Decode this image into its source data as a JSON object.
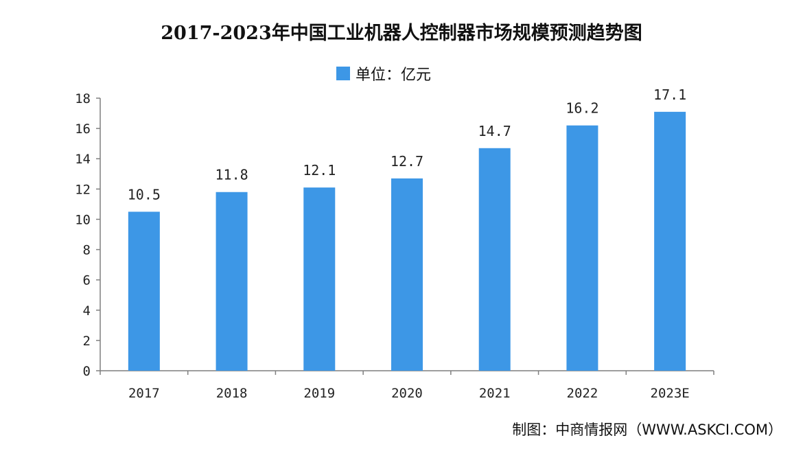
{
  "chart_data": {
    "type": "bar",
    "title": "2017-2023年中国工业机器人控制器市场规模预测趋势图",
    "legend": [
      "单位：亿元"
    ],
    "categories": [
      "2017",
      "2018",
      "2019",
      "2020",
      "2021",
      "2022",
      "2023E"
    ],
    "values": [
      10.5,
      11.8,
      12.1,
      12.7,
      14.7,
      16.2,
      17.1
    ],
    "data_labels": [
      "10.5",
      "11.8",
      "12.1",
      "12.7",
      "14.7",
      "16.2",
      "17.1"
    ],
    "ylim": [
      0,
      18
    ],
    "y_ticks": [
      0,
      2,
      4,
      6,
      8,
      10,
      12,
      14,
      16,
      18
    ],
    "grid": false,
    "legend_position": "top-center",
    "bar_color": "#3d97e6",
    "xlabel": "",
    "ylabel": ""
  },
  "source": "制图：中商情报网（WWW.ASKCI.COM）"
}
